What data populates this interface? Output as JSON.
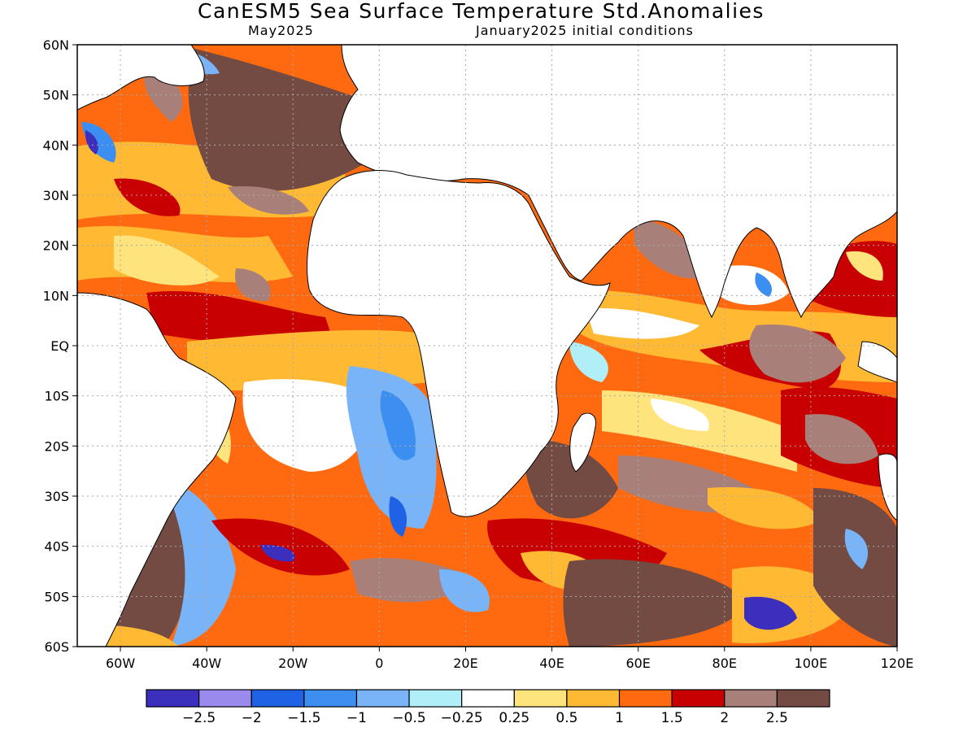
{
  "title": "CanESM5 Sea Surface Temperature Std.Anomalies",
  "subtitle_left": "May2025",
  "subtitle_right": "January2025 initial conditions",
  "map": {
    "lon_range": [
      -70,
      120
    ],
    "lat_range": [
      -60,
      60
    ],
    "lon_ticks": [
      {
        "value": -60,
        "label": "60W"
      },
      {
        "value": -40,
        "label": "40W"
      },
      {
        "value": -20,
        "label": "20W"
      },
      {
        "value": 0,
        "label": "0"
      },
      {
        "value": 20,
        "label": "20E"
      },
      {
        "value": 40,
        "label": "40E"
      },
      {
        "value": 60,
        "label": "60E"
      },
      {
        "value": 80,
        "label": "80E"
      },
      {
        "value": 100,
        "label": "100E"
      },
      {
        "value": 120,
        "label": "120E"
      }
    ],
    "lat_ticks": [
      {
        "value": 60,
        "label": "60N"
      },
      {
        "value": 50,
        "label": "50N"
      },
      {
        "value": 40,
        "label": "40N"
      },
      {
        "value": 30,
        "label": "30N"
      },
      {
        "value": 20,
        "label": "20N"
      },
      {
        "value": 10,
        "label": "10N"
      },
      {
        "value": 0,
        "label": "EQ"
      },
      {
        "value": -10,
        "label": "10S"
      },
      {
        "value": -20,
        "label": "20S"
      },
      {
        "value": -30,
        "label": "30S"
      },
      {
        "value": -40,
        "label": "40S"
      },
      {
        "value": -50,
        "label": "50S"
      },
      {
        "value": -60,
        "label": "60S"
      }
    ],
    "grid": true,
    "land_color": "#ffffff"
  },
  "colorbar": {
    "colors": [
      "#3c2fbe",
      "#9b8aee",
      "#1f62e6",
      "#3c8ef0",
      "#78b4f7",
      "#b0eef8",
      "#ffffff",
      "#ffe37c",
      "#ffb933",
      "#ff6a10",
      "#c80002",
      "#a88079",
      "#734b42"
    ],
    "labels": [
      "−2.5",
      "−2",
      "−1.5",
      "−1",
      "−0.5",
      "−0.25",
      "0.25",
      "0.5",
      "1",
      "1.5",
      "2",
      "2.5"
    ]
  }
}
